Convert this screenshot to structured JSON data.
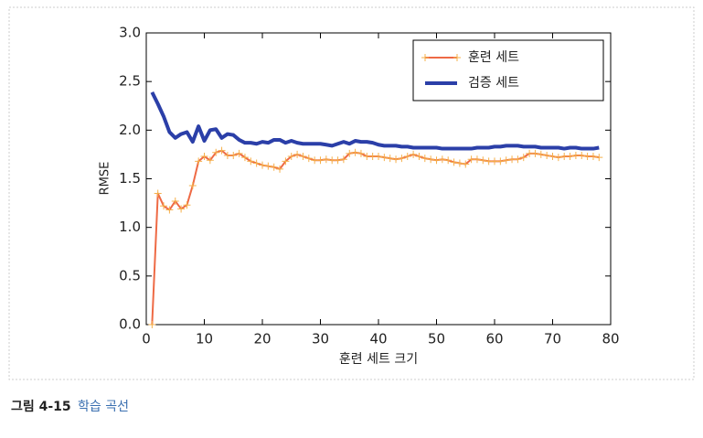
{
  "chart_data": {
    "type": "line",
    "xlabel": "훈련 세트 크기",
    "ylabel": "RMSE",
    "x": [
      1,
      2,
      3,
      4,
      5,
      6,
      7,
      8,
      9,
      10,
      11,
      12,
      13,
      14,
      15,
      16,
      17,
      18,
      19,
      20,
      21,
      22,
      23,
      24,
      25,
      26,
      27,
      28,
      29,
      30,
      31,
      32,
      33,
      34,
      35,
      36,
      37,
      38,
      39,
      40,
      41,
      42,
      43,
      44,
      45,
      46,
      47,
      48,
      49,
      50,
      51,
      52,
      53,
      54,
      55,
      56,
      57,
      58,
      59,
      60,
      61,
      62,
      63,
      64,
      65,
      66,
      67,
      68,
      69,
      70,
      71,
      72,
      73,
      74,
      75,
      76,
      77,
      78
    ],
    "series": [
      {
        "name": "훈련 세트",
        "color": "#ee6a45",
        "marker": "+",
        "values": [
          0,
          1.35,
          1.22,
          1.18,
          1.27,
          1.19,
          1.23,
          1.43,
          1.68,
          1.73,
          1.69,
          1.77,
          1.79,
          1.74,
          1.74,
          1.76,
          1.72,
          1.68,
          1.66,
          1.64,
          1.63,
          1.62,
          1.6,
          1.68,
          1.73,
          1.75,
          1.73,
          1.71,
          1.69,
          1.69,
          1.7,
          1.69,
          1.69,
          1.7,
          1.76,
          1.77,
          1.76,
          1.73,
          1.73,
          1.73,
          1.72,
          1.71,
          1.7,
          1.71,
          1.73,
          1.75,
          1.73,
          1.71,
          1.7,
          1.69,
          1.7,
          1.69,
          1.67,
          1.66,
          1.65,
          1.7,
          1.7,
          1.69,
          1.68,
          1.68,
          1.68,
          1.69,
          1.7,
          1.7,
          1.72,
          1.76,
          1.76,
          1.75,
          1.74,
          1.73,
          1.72,
          1.73,
          1.73,
          1.74,
          1.74,
          1.73,
          1.73,
          1.72
        ]
      },
      {
        "name": "검증 세트",
        "color": "#2b3fa8",
        "values": [
          2.39,
          2.27,
          2.14,
          1.98,
          1.92,
          1.96,
          1.98,
          1.88,
          2.04,
          1.89,
          2.0,
          2.01,
          1.92,
          1.96,
          1.95,
          1.9,
          1.87,
          1.87,
          1.86,
          1.88,
          1.87,
          1.9,
          1.9,
          1.87,
          1.89,
          1.87,
          1.86,
          1.86,
          1.86,
          1.86,
          1.85,
          1.84,
          1.86,
          1.88,
          1.86,
          1.89,
          1.88,
          1.88,
          1.87,
          1.85,
          1.84,
          1.84,
          1.84,
          1.83,
          1.83,
          1.82,
          1.82,
          1.82,
          1.82,
          1.82,
          1.81,
          1.81,
          1.81,
          1.81,
          1.81,
          1.81,
          1.82,
          1.82,
          1.82,
          1.83,
          1.83,
          1.84,
          1.84,
          1.84,
          1.83,
          1.83,
          1.83,
          1.82,
          1.82,
          1.82,
          1.82,
          1.81,
          1.82,
          1.82,
          1.81,
          1.81,
          1.81,
          1.82
        ]
      }
    ],
    "xlim": [
      0,
      80
    ],
    "xticks": [
      0,
      10,
      20,
      30,
      40,
      50,
      60,
      70,
      80
    ],
    "ylim": [
      0,
      3
    ],
    "yticks": [
      {
        "value": 0,
        "label": "0.0"
      },
      0.5,
      {
        "value": 1,
        "label": "1.0"
      },
      1.5,
      {
        "value": 2,
        "label": "2.0"
      },
      2.5,
      {
        "value": 3,
        "label": "3.0"
      }
    ],
    "legend": "upper right",
    "grid": false
  },
  "caption": {
    "label": "그림 4-15",
    "title": "학습 곡선"
  }
}
